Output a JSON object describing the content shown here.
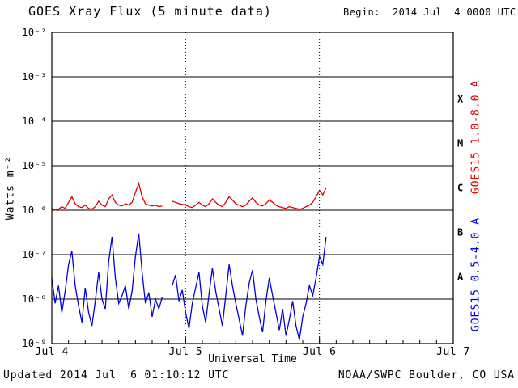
{
  "header": {
    "begin_label": "Begin:  2014 Jul  4 0000 UTC"
  },
  "footer": {
    "updated": "Updated 2014 Jul  6 01:10:12 UTC",
    "credit": "NOAA/SWPC Boulder, CO USA"
  },
  "chart_data": {
    "type": "line",
    "title": "GOES Xray Flux (5 minute data)",
    "xlabel": "Universal Time",
    "ylabel": "Watts m⁻²",
    "legend_position": "right-rotated",
    "grid": "decade-horizontal-solid, day-vertical-dotted",
    "x_axis": {
      "range": [
        0,
        3
      ],
      "tick_positions": [
        0,
        1,
        2,
        3
      ],
      "tick_labels": [
        "Jul 4",
        "Jul 5",
        "Jul 6",
        "Jul 7"
      ],
      "minor_tick_interval": 0.125
    },
    "y_axis": {
      "scale": "log",
      "range": [
        1e-09,
        0.01
      ],
      "tick_exponents": [
        -2,
        -3,
        -4,
        -5,
        -6,
        -7,
        -8,
        -9
      ],
      "tick_labels": [
        "10⁻²",
        "10⁻³",
        "10⁻⁴",
        "10⁻⁵",
        "10⁻⁶",
        "10⁻⁷",
        "10⁻⁸",
        "10⁻⁹"
      ]
    },
    "flare_classes": [
      {
        "label": "X",
        "flux": 0.000316
      },
      {
        "label": "M",
        "flux": 3.16e-05
      },
      {
        "label": "C",
        "flux": 3.16e-06
      },
      {
        "label": "B",
        "flux": 3.16e-07
      },
      {
        "label": "A",
        "flux": 3.16e-08
      }
    ],
    "colors": {
      "long": "#dd0000",
      "short": "#0000dd",
      "axes": "#000000"
    },
    "x": [
      0,
      0.025,
      0.05,
      0.075,
      0.1,
      0.125,
      0.15,
      0.175,
      0.2,
      0.225,
      0.25,
      0.275,
      0.3,
      0.325,
      0.35,
      0.375,
      0.4,
      0.425,
      0.45,
      0.475,
      0.5,
      0.525,
      0.55,
      0.575,
      0.6,
      0.625,
      0.65,
      0.675,
      0.7,
      0.725,
      0.75,
      0.775,
      0.8,
      0.825,
      0.85,
      0.875,
      0.9,
      0.925,
      0.95,
      0.975,
      1.0,
      1.025,
      1.05,
      1.075,
      1.1,
      1.125,
      1.15,
      1.175,
      1.2,
      1.225,
      1.25,
      1.275,
      1.3,
      1.325,
      1.35,
      1.375,
      1.4,
      1.425,
      1.45,
      1.475,
      1.5,
      1.525,
      1.55,
      1.575,
      1.6,
      1.625,
      1.65,
      1.675,
      1.7,
      1.725,
      1.75,
      1.775,
      1.8,
      1.825,
      1.85,
      1.875,
      1.9,
      1.925,
      1.95,
      1.975,
      2.0,
      2.025,
      2.05
    ],
    "series": [
      {
        "name": "GOES15 1.0-8.0 A",
        "color_key": "long",
        "y": [
          1.1e-06,
          1e-06,
          1.05e-06,
          1.2e-06,
          1.1e-06,
          1.5e-06,
          2e-06,
          1.4e-06,
          1.2e-06,
          1.15e-06,
          1.3e-06,
          1.1e-06,
          1.05e-06,
          1.2e-06,
          1.6e-06,
          1.3e-06,
          1.2e-06,
          1.8e-06,
          2.2e-06,
          1.5e-06,
          1.3e-06,
          1.25e-06,
          1.4e-06,
          1.3e-06,
          1.5e-06,
          2.5e-06,
          4e-06,
          2e-06,
          1.4e-06,
          1.3e-06,
          1.25e-06,
          1.3e-06,
          1.2e-06,
          1.25e-06,
          null,
          null,
          1.6e-06,
          1.5e-06,
          1.4e-06,
          1.35e-06,
          1.3e-06,
          1.2e-06,
          1.15e-06,
          1.3e-06,
          1.5e-06,
          1.3e-06,
          1.2e-06,
          1.4e-06,
          1.8e-06,
          1.5e-06,
          1.3e-06,
          1.2e-06,
          1.5e-06,
          2e-06,
          1.7e-06,
          1.4e-06,
          1.3e-06,
          1.2e-06,
          1.3e-06,
          1.6e-06,
          1.9e-06,
          1.5e-06,
          1.3e-06,
          1.25e-06,
          1.4e-06,
          1.7e-06,
          1.5e-06,
          1.3e-06,
          1.2e-06,
          1.15e-06,
          1.1e-06,
          1.2e-06,
          1.15e-06,
          1.1e-06,
          1.05e-06,
          1.1e-06,
          1.2e-06,
          1.3e-06,
          1.5e-06,
          2e-06,
          2.8e-06,
          2.2e-06,
          3.2e-06
        ]
      },
      {
        "name": "GOES15 0.5-4.0 A",
        "color_key": "short",
        "y": [
          3e-08,
          8e-09,
          2e-08,
          5e-09,
          1.5e-08,
          6e-08,
          1.2e-07,
          2e-08,
          7e-09,
          3e-09,
          1.8e-08,
          5e-09,
          2.5e-09,
          9e-09,
          4e-08,
          1e-08,
          6e-09,
          7e-08,
          2.5e-07,
          3e-08,
          8e-09,
          1.2e-08,
          2e-08,
          6e-09,
          1.5e-08,
          9e-08,
          3e-07,
          4e-08,
          8e-09,
          1.4e-08,
          4e-09,
          1e-08,
          6e-09,
          1.1e-08,
          null,
          null,
          2e-08,
          3.5e-08,
          9e-09,
          1.6e-08,
          5e-09,
          2.2e-09,
          8e-09,
          1.8e-08,
          4e-08,
          7e-09,
          3e-09,
          1.3e-08,
          5e-08,
          1.5e-08,
          6e-09,
          2.5e-09,
          1.2e-08,
          6e-08,
          2e-08,
          8e-09,
          3.5e-09,
          1.5e-09,
          7e-09,
          2.3e-08,
          4.5e-08,
          1e-08,
          4e-09,
          1.8e-09,
          9e-09,
          3e-08,
          1.2e-08,
          5e-09,
          2e-09,
          6e-09,
          1.5e-09,
          3.5e-09,
          9e-09,
          2.5e-09,
          1.2e-09,
          4e-09,
          8e-09,
          2e-08,
          1.2e-08,
          3e-08,
          9e-08,
          6e-08,
          2.5e-07
        ]
      }
    ]
  }
}
